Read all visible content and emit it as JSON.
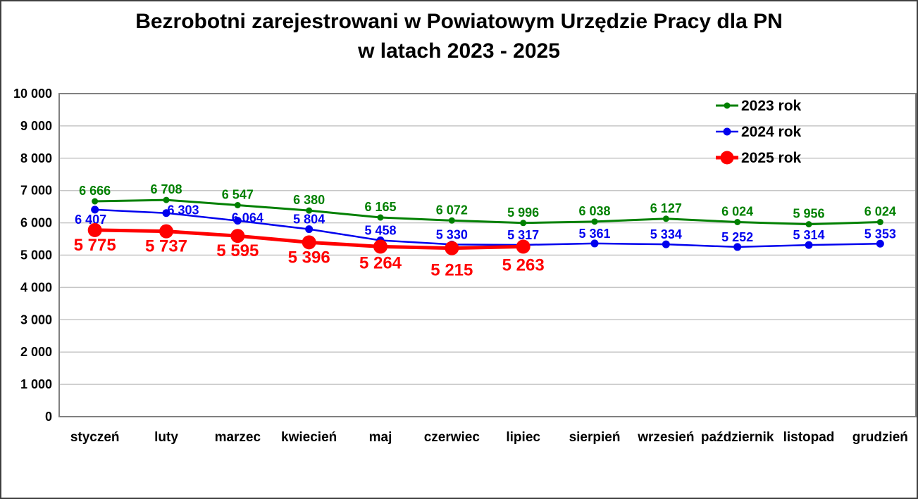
{
  "title": {
    "line1": "Bezrobotni zarejestrowani w Powiatowym Urzędzie Pracy dla PN",
    "line2": "w latach 2023 - 2025"
  },
  "chart_data": {
    "type": "line",
    "categories": [
      "styczeń",
      "luty",
      "marzec",
      "kwiecień",
      "maj",
      "czerwiec",
      "lipiec",
      "sierpień",
      "wrzesień",
      "październik",
      "listopad",
      "grudzień"
    ],
    "series": [
      {
        "name": "2023 rok",
        "color": "#008000",
        "values": [
          6666,
          6708,
          6547,
          6380,
          6165,
          6072,
          5996,
          6038,
          6127,
          6024,
          5956,
          6024
        ],
        "labels": [
          "6 666",
          "6 708",
          "6 547",
          "6 380",
          "6 165",
          "6 072",
          "5 996",
          "6 038",
          "6 127",
          "6 024",
          "5 956",
          "6 024"
        ],
        "marker_radius": 4.5,
        "line_width": 3,
        "label_font_size": 18,
        "label_dy": -9,
        "label_offsets": {}
      },
      {
        "name": "2024 rok",
        "color": "#0000ee",
        "values": [
          6407,
          6303,
          6064,
          5804,
          5458,
          5330,
          5317,
          5361,
          5334,
          5252,
          5314,
          5353
        ],
        "labels": [
          "6 407",
          "6 303",
          "6 064",
          "5 804",
          "5 458",
          "5 330",
          "5 317",
          "5 361",
          "5 334",
          "5 252",
          "5 314",
          "5 353"
        ],
        "marker_radius": 5.5,
        "line_width": 2.5,
        "label_font_size": 18,
        "label_dy": -8,
        "label_offsets": {
          "0": [
            -6,
            20
          ],
          "1": [
            24,
            2
          ],
          "2": [
            14,
            2
          ]
        }
      },
      {
        "name": "2025 rok",
        "color": "#ff0000",
        "values": [
          5775,
          5737,
          5595,
          5396,
          5264,
          5215,
          5263
        ],
        "labels": [
          "5 775",
          "5 737",
          "5 595",
          "5 396",
          "5 264",
          "5 215",
          "5 263"
        ],
        "marker_radius": 10,
        "line_width": 5,
        "label_font_size": 24,
        "label_dy": 29,
        "label_offsets": {
          "4": [
            0,
            31
          ],
          "5": [
            0,
            39
          ],
          "6": [
            0,
            34
          ]
        }
      }
    ],
    "y_axis": {
      "min": 0,
      "max": 10000,
      "tick_step": 1000,
      "tick_labels": [
        "0",
        "1 000",
        "2 000",
        "3 000",
        "4 000",
        "5 000",
        "6 000",
        "7 000",
        "8 000",
        "9 000",
        "10 000"
      ]
    },
    "x_axis": {
      "label_font_size": 19
    },
    "grid": "horizontal",
    "legend": {
      "position": "top-right-inside",
      "items": [
        "2023 rok",
        "2024 rok",
        "2025 rok"
      ],
      "font_size": 21
    },
    "colors": {
      "grid_line": "#c6c6c6",
      "axis_frame": "#808080",
      "text": "#000000",
      "background": "#ffffff",
      "page_border": "#3f3f3f"
    }
  }
}
